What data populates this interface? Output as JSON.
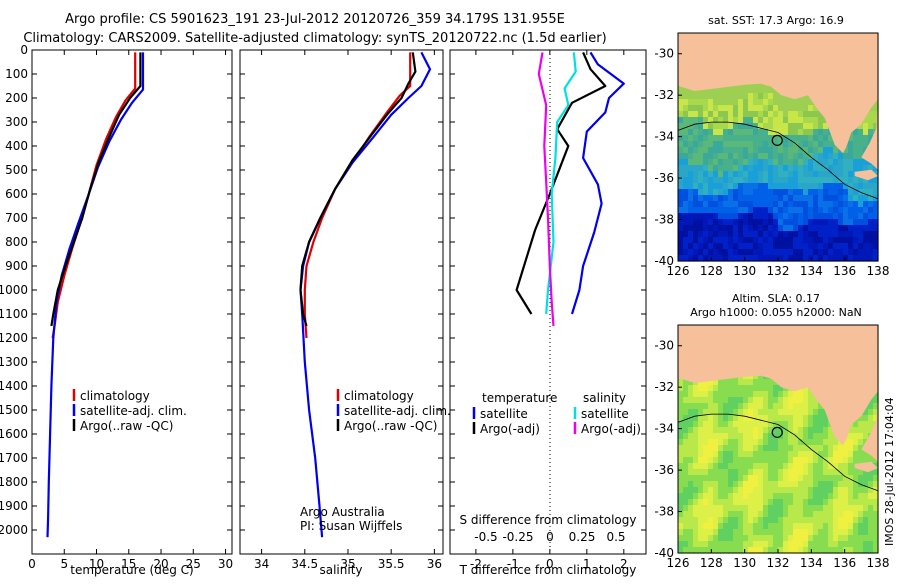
{
  "header": {
    "line1": "Argo profile: CS 5901623_191 23-Jul-2012 20120726_359 34.179S 131.955E",
    "line2": "Climatology: CARS2009. Satellite-adjusted climatology: synTS_20120722.nc (1.5d earlier)"
  },
  "side_stamp": "IMOS 28-Jul-2012 17:04:04",
  "colors": {
    "climatology": "#e00000",
    "satellite": "#0000ee",
    "argo": "#000000",
    "sat_salinity": "#00e0e0",
    "argo_salinity": "#ee00ee",
    "land": "#f5c09a"
  },
  "chart_data": [
    {
      "type": "line",
      "id": "temperature-profile",
      "xlabel": "temperature (deg C)",
      "xlim": [
        0,
        31
      ],
      "ylim": [
        2100,
        0
      ],
      "xticks": [
        0,
        5,
        10,
        15,
        20,
        25,
        30
      ],
      "yticks": [
        0,
        100,
        200,
        300,
        400,
        500,
        600,
        700,
        800,
        900,
        1000,
        1100,
        1200,
        1300,
        1400,
        1500,
        1600,
        1700,
        1800,
        1900,
        2000
      ],
      "legend": [
        "climatology",
        "satellite-adj. clim.",
        "Argo(..raw -QC)"
      ],
      "series": [
        {
          "name": "climatology",
          "color": "#e00000",
          "points": [
            [
              16,
              10
            ],
            [
              16,
              160
            ],
            [
              14.5,
              210
            ],
            [
              13,
              280
            ],
            [
              11.5,
              370
            ],
            [
              10,
              480
            ],
            [
              8.8,
              600
            ],
            [
              7.5,
              720
            ],
            [
              6.2,
              830
            ],
            [
              5,
              940
            ],
            [
              4,
              1050
            ],
            [
              3.5,
              1150
            ],
            [
              3.2,
              1200
            ]
          ]
        },
        {
          "name": "satellite-adj. clim.",
          "color": "#0000ee",
          "points": [
            [
              17.2,
              10
            ],
            [
              17.2,
              165
            ],
            [
              15.5,
              220
            ],
            [
              13.8,
              290
            ],
            [
              12,
              380
            ],
            [
              10.2,
              490
            ],
            [
              8.8,
              600
            ],
            [
              7.2,
              720
            ],
            [
              5.8,
              830
            ],
            [
              4.6,
              940
            ],
            [
              3.8,
              1050
            ],
            [
              3.3,
              1200
            ],
            [
              3.0,
              1400
            ],
            [
              2.8,
              1600
            ],
            [
              2.6,
              1800
            ],
            [
              2.5,
              1950
            ],
            [
              2.4,
              2030
            ]
          ]
        },
        {
          "name": "Argo(..raw -QC)",
          "color": "#000000",
          "points": [
            [
              16.8,
              10
            ],
            [
              16.8,
              150
            ],
            [
              15.2,
              200
            ],
            [
              13.5,
              270
            ],
            [
              12,
              360
            ],
            [
              10.3,
              470
            ],
            [
              9,
              580
            ],
            [
              7.8,
              700
            ],
            [
              6.5,
              800
            ],
            [
              5.2,
              900
            ],
            [
              4,
              1000
            ],
            [
              3.3,
              1100
            ],
            [
              3,
              1150
            ]
          ]
        }
      ]
    },
    {
      "type": "line",
      "id": "salinity-profile",
      "xlabel": "salinity",
      "xlim": [
        33.75,
        36.1
      ],
      "ylim": [
        2100,
        0
      ],
      "xticks": [
        34,
        34.5,
        35,
        35.5,
        36
      ],
      "legend": [
        "climatology",
        "satellite-adj. clim.",
        "Argo(..raw -QC)"
      ],
      "annotation": [
        "Argo Australia",
        "PI: Susan Wijffels"
      ],
      "series": [
        {
          "name": "climatology",
          "color": "#e00000",
          "points": [
            [
              35.72,
              10
            ],
            [
              35.72,
              150
            ],
            [
              35.6,
              190
            ],
            [
              35.45,
              260
            ],
            [
              35.25,
              360
            ],
            [
              35.05,
              470
            ],
            [
              34.85,
              580
            ],
            [
              34.7,
              700
            ],
            [
              34.6,
              800
            ],
            [
              34.52,
              900
            ],
            [
              34.5,
              1000
            ],
            [
              34.5,
              1100
            ],
            [
              34.52,
              1200
            ]
          ]
        },
        {
          "name": "satellite-adj. clim.",
          "color": "#0000ee",
          "points": [
            [
              35.85,
              10
            ],
            [
              35.95,
              80
            ],
            [
              35.85,
              150
            ],
            [
              35.7,
              200
            ],
            [
              35.5,
              270
            ],
            [
              35.3,
              360
            ],
            [
              35.05,
              470
            ],
            [
              34.85,
              580
            ],
            [
              34.68,
              700
            ],
            [
              34.55,
              800
            ],
            [
              34.48,
              900
            ],
            [
              34.45,
              1000
            ],
            [
              34.47,
              1100
            ],
            [
              34.5,
              1300
            ],
            [
              34.55,
              1500
            ],
            [
              34.62,
              1700
            ],
            [
              34.67,
              1900
            ],
            [
              34.7,
              2030
            ]
          ]
        },
        {
          "name": "Argo(..raw -QC)",
          "color": "#000000",
          "points": [
            [
              35.75,
              10
            ],
            [
              35.78,
              90
            ],
            [
              35.7,
              140
            ],
            [
              35.62,
              200
            ],
            [
              35.45,
              270
            ],
            [
              35.28,
              350
            ],
            [
              35.05,
              460
            ],
            [
              34.85,
              580
            ],
            [
              34.68,
              700
            ],
            [
              34.55,
              800
            ],
            [
              34.47,
              900
            ],
            [
              34.45,
              1000
            ],
            [
              34.48,
              1100
            ],
            [
              34.52,
              1150
            ]
          ]
        }
      ]
    },
    {
      "type": "line",
      "id": "difference-profile",
      "xlabel": "T difference from climatology",
      "xlabel_top": "S difference from climatology",
      "xlim": [
        -2.7,
        2.6
      ],
      "ylim": [
        2100,
        0
      ],
      "xticks": [
        -2,
        -1,
        0,
        1,
        2
      ],
      "top_ticks": [
        "-0.5",
        "-0.25",
        "0",
        "0.25",
        "0.5"
      ],
      "legend_headers": [
        "temperature",
        "salinity"
      ],
      "legend": [
        "satellite",
        "Argo(-adj)",
        "satellite",
        "Argo(-adj)"
      ],
      "series": [
        {
          "name": "satellite",
          "color": "#0000ee",
          "points": [
            [
              1.1,
              10
            ],
            [
              1.3,
              60
            ],
            [
              2.0,
              140
            ],
            [
              1.6,
              200
            ],
            [
              1.5,
              260
            ],
            [
              1.0,
              340
            ],
            [
              0.9,
              450
            ],
            [
              1.3,
              560
            ],
            [
              1.4,
              640
            ],
            [
              1.2,
              760
            ],
            [
              0.9,
              900
            ],
            [
              0.8,
              1000
            ],
            [
              0.6,
              1100
            ]
          ]
        },
        {
          "name": "Argo(-adj)",
          "color": "#000000",
          "points": [
            [
              0.9,
              10
            ],
            [
              1.1,
              80
            ],
            [
              1.5,
              150
            ],
            [
              0.6,
              220
            ],
            [
              0.2,
              330
            ],
            [
              0.5,
              400
            ],
            [
              0.3,
              480
            ],
            [
              0.0,
              600
            ],
            [
              -0.4,
              750
            ],
            [
              -0.7,
              900
            ],
            [
              -0.9,
              1000
            ],
            [
              -0.5,
              1100
            ]
          ]
        },
        {
          "name": "satellite",
          "color": "#00e0e0",
          "points": [
            [
              0.65,
              10
            ],
            [
              0.7,
              90
            ],
            [
              0.4,
              160
            ],
            [
              0.5,
              230
            ],
            [
              0.2,
              300
            ],
            [
              0.15,
              450
            ],
            [
              0.05,
              600
            ],
            [
              0.1,
              800
            ],
            [
              -0.05,
              1000
            ],
            [
              -0.1,
              1100
            ]
          ]
        },
        {
          "name": "Argo(-adj)",
          "color": "#ee00ee",
          "points": [
            [
              -0.2,
              10
            ],
            [
              -0.3,
              100
            ],
            [
              -0.1,
              230
            ],
            [
              -0.15,
              400
            ],
            [
              -0.1,
              550
            ],
            [
              -0.05,
              700
            ],
            [
              0.0,
              900
            ],
            [
              0.05,
              1050
            ],
            [
              0.1,
              1150
            ]
          ]
        }
      ]
    },
    {
      "type": "heatmap",
      "id": "sst-map",
      "title": "sat. SST: 17.3 Argo: 16.9",
      "xlim": [
        126,
        138
      ],
      "ylim": [
        -40,
        -29
      ],
      "xticks": [
        126,
        128,
        130,
        132,
        134,
        136,
        138
      ],
      "yticks": [
        -30,
        -32,
        -34,
        -36,
        -38,
        -40
      ],
      "argo_position": [
        131.955,
        -34.179
      ]
    },
    {
      "type": "heatmap",
      "id": "sla-map",
      "title_lines": [
        "Altim. SLA: 0.17",
        "Argo h1000: 0.055 h2000: NaN"
      ],
      "xlim": [
        126,
        138
      ],
      "ylim": [
        -40,
        -29
      ],
      "xticks": [
        126,
        128,
        130,
        132,
        134,
        136,
        138
      ],
      "yticks": [
        -30,
        -32,
        -34,
        -36,
        -38,
        -40
      ],
      "argo_position": [
        131.955,
        -34.179
      ]
    }
  ]
}
